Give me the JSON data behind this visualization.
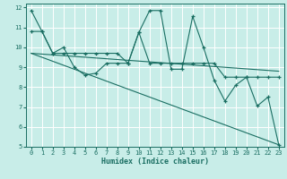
{
  "xlabel": "Humidex (Indice chaleur)",
  "xlim": [
    -0.5,
    23.5
  ],
  "ylim": [
    5,
    12.2
  ],
  "yticks": [
    5,
    6,
    7,
    8,
    9,
    10,
    11,
    12
  ],
  "xticks": [
    0,
    1,
    2,
    3,
    4,
    5,
    6,
    7,
    8,
    9,
    10,
    11,
    12,
    13,
    14,
    15,
    16,
    17,
    18,
    19,
    20,
    21,
    22,
    23
  ],
  "bg_color": "#c8ede8",
  "grid_color": "#ffffff",
  "line_color": "#1a6e62",
  "line1_x": [
    0,
    1,
    2,
    3,
    4,
    5,
    6,
    7,
    8,
    9,
    10,
    11,
    12,
    13,
    14,
    15,
    16,
    17,
    18,
    19,
    20,
    21,
    22,
    23
  ],
  "line1_y": [
    11.85,
    10.8,
    9.7,
    10.0,
    9.0,
    8.6,
    8.7,
    9.2,
    9.2,
    9.2,
    10.75,
    11.85,
    11.85,
    8.9,
    8.9,
    11.55,
    10.0,
    8.35,
    7.3,
    8.1,
    8.5,
    7.05,
    7.5,
    5.1
  ],
  "line2_x": [
    0,
    1,
    2,
    3,
    4,
    5,
    6,
    7,
    8,
    9,
    10,
    11,
    12,
    13,
    14,
    15,
    16,
    17,
    18,
    19,
    20,
    21,
    22,
    23
  ],
  "line2_y": [
    10.8,
    10.8,
    9.7,
    9.7,
    9.7,
    9.7,
    9.7,
    9.7,
    9.7,
    9.2,
    10.75,
    9.2,
    9.2,
    9.2,
    9.2,
    9.2,
    9.2,
    9.2,
    8.5,
    8.5,
    8.5,
    8.5,
    8.5,
    8.5
  ],
  "trend1_x": [
    0,
    23
  ],
  "trend1_y": [
    9.7,
    8.8
  ],
  "trend2_x": [
    0,
    23
  ],
  "trend2_y": [
    9.7,
    5.1
  ]
}
